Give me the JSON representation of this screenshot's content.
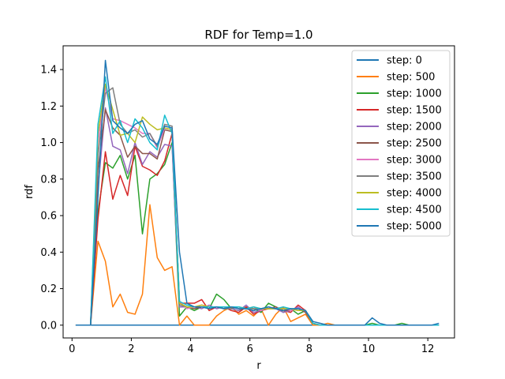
{
  "chart_data": {
    "type": "line",
    "title": "RDF for Temp=1.0",
    "xlabel": "r",
    "ylabel": "rdf",
    "xlim": [
      -0.3,
      12.9
    ],
    "ylim": [
      -0.07,
      1.53
    ],
    "xticks": [
      "0",
      "2",
      "4",
      "6",
      "8",
      "10",
      "12"
    ],
    "yticks": [
      "0.0",
      "0.2",
      "0.4",
      "0.6",
      "0.8",
      "1.0",
      "1.2",
      "1.4"
    ],
    "legend_position": "top-right",
    "grid": false,
    "x": [
      0.125,
      0.375,
      0.625,
      0.875,
      1.125,
      1.375,
      1.625,
      1.875,
      2.125,
      2.375,
      2.625,
      2.875,
      3.125,
      3.375,
      3.625,
      3.875,
      4.125,
      4.375,
      4.625,
      4.875,
      5.125,
      5.375,
      5.625,
      5.875,
      6.125,
      6.375,
      6.625,
      6.875,
      7.125,
      7.375,
      7.625,
      7.875,
      8.125,
      8.375,
      8.625,
      8.875,
      9.125,
      9.375,
      9.625,
      9.875,
      10.125,
      10.375,
      10.625,
      10.875,
      11.125,
      11.375,
      11.625,
      11.875,
      12.125,
      12.375
    ],
    "series": [
      {
        "name": "step: 0",
        "color": "#1f77b4",
        "values": [
          0,
          0,
          0,
          0,
          0,
          0,
          0,
          0,
          0,
          0,
          0,
          0,
          0,
          0,
          0,
          0,
          0,
          0,
          0,
          0,
          0,
          0,
          0,
          0,
          0,
          0,
          0,
          0,
          0,
          0,
          0,
          0,
          0,
          0,
          0,
          0,
          0,
          0,
          0,
          0,
          0,
          0,
          0,
          0,
          0,
          0,
          0,
          0,
          0,
          0
        ]
      },
      {
        "name": "step: 500",
        "color": "#ff7f0e",
        "values": [
          0,
          0,
          0,
          0.46,
          0.35,
          0.1,
          0.17,
          0.07,
          0.06,
          0.17,
          0.66,
          0.37,
          0.3,
          0.32,
          0,
          0.05,
          0,
          0,
          0,
          0.05,
          0.08,
          0.1,
          0.06,
          0.08,
          0.05,
          0.09,
          0,
          0.06,
          0.1,
          0.02,
          0.04,
          0.06,
          0,
          0,
          0.01,
          0,
          0,
          0,
          0,
          0,
          0,
          0,
          0,
          0,
          0,
          0,
          0,
          0,
          0,
          0
        ]
      },
      {
        "name": "step: 1000",
        "color": "#2ca02c",
        "values": [
          0,
          0,
          0,
          0.62,
          0.89,
          0.86,
          0.93,
          0.8,
          0.93,
          0.5,
          0.8,
          0.83,
          0.88,
          1.0,
          0.05,
          0.1,
          0.08,
          0.1,
          0.09,
          0.17,
          0.14,
          0.09,
          0.08,
          0.1,
          0.09,
          0.07,
          0.12,
          0.1,
          0.07,
          0.09,
          0.06,
          0.08,
          0.01,
          0,
          0,
          0,
          0,
          0,
          0,
          0,
          0.01,
          0,
          0,
          0,
          0.01,
          0,
          0,
          0,
          0,
          0
        ]
      },
      {
        "name": "step: 1500",
        "color": "#d62728",
        "values": [
          0,
          0,
          0,
          0.58,
          0.95,
          0.69,
          0.82,
          0.71,
          0.98,
          0.87,
          0.85,
          0.82,
          0.9,
          1.05,
          0.12,
          0.12,
          0.12,
          0.14,
          0.08,
          0.1,
          0.1,
          0.08,
          0.07,
          0.1,
          0.06,
          0.08,
          0.09,
          0.1,
          0.08,
          0.07,
          0.11,
          0.08,
          0.01,
          0,
          0,
          0,
          0,
          0,
          0,
          0,
          0,
          0,
          0,
          0,
          0,
          0,
          0,
          0,
          0,
          0
        ]
      },
      {
        "name": "step: 2000",
        "color": "#9467bd",
        "values": [
          0,
          0,
          0,
          0.75,
          1.19,
          0.98,
          0.96,
          0.83,
          1.0,
          0.88,
          0.95,
          0.92,
          0.99,
          0.98,
          0.1,
          0.1,
          0.1,
          0.09,
          0.11,
          0.09,
          0.1,
          0.09,
          0.08,
          0.11,
          0.07,
          0.08,
          0.1,
          0.09,
          0.07,
          0.08,
          0.1,
          0.07,
          0.01,
          0,
          0,
          0,
          0,
          0,
          0,
          0,
          0,
          0,
          0,
          0,
          0,
          0,
          0,
          0,
          0,
          0
        ]
      },
      {
        "name": "step: 2500",
        "color": "#8c564b",
        "values": [
          0,
          0,
          0,
          0.85,
          1.18,
          1.08,
          1.04,
          0.92,
          0.98,
          0.94,
          0.94,
          0.91,
          1.07,
          1.06,
          0.12,
          0.1,
          0.09,
          0.1,
          0.1,
          0.1,
          0.09,
          0.1,
          0.09,
          0.09,
          0.08,
          0.09,
          0.09,
          0.1,
          0.08,
          0.08,
          0.09,
          0.07,
          0.01,
          0,
          0,
          0,
          0,
          0,
          0,
          0,
          0,
          0,
          0,
          0,
          0,
          0,
          0,
          0,
          0,
          0
        ]
      },
      {
        "name": "step: 3000",
        "color": "#e377c2",
        "values": [
          0,
          0,
          0,
          1.0,
          1.3,
          1.13,
          1.12,
          1.1,
          1.08,
          1.05,
          1.05,
          0.97,
          1.08,
          1.07,
          0.13,
          0.09,
          0.1,
          0.11,
          0.1,
          0.1,
          0.09,
          0.1,
          0.1,
          0.09,
          0.1,
          0.08,
          0.1,
          0.09,
          0.09,
          0.08,
          0.09,
          0.08,
          0.01,
          0,
          0,
          0,
          0,
          0,
          0,
          0,
          0,
          0,
          0,
          0,
          0,
          0,
          0,
          0,
          0,
          0
        ]
      },
      {
        "name": "step: 3500",
        "color": "#7f7f7f",
        "values": [
          0,
          0,
          0,
          0.93,
          1.27,
          1.3,
          1.1,
          1.05,
          1.07,
          1.03,
          1.05,
          0.98,
          1.1,
          1.09,
          0.11,
          0.1,
          0.1,
          0.1,
          0.1,
          0.1,
          0.09,
          0.09,
          0.1,
          0.09,
          0.09,
          0.09,
          0.09,
          0.09,
          0.09,
          0.09,
          0.08,
          0.08,
          0.01,
          0,
          0,
          0,
          0,
          0,
          0,
          0,
          0,
          0,
          0,
          0,
          0,
          0,
          0,
          0,
          0,
          0
        ]
      },
      {
        "name": "step: 4000",
        "color": "#bcbd22",
        "values": [
          0,
          0,
          0,
          1.05,
          1.32,
          1.18,
          1.04,
          1.05,
          1.0,
          1.14,
          1.1,
          1.07,
          1.08,
          1.07,
          0.12,
          0.1,
          0.1,
          0.11,
          0.1,
          0.1,
          0.09,
          0.1,
          0.1,
          0.09,
          0.1,
          0.09,
          0.09,
          0.09,
          0.09,
          0.09,
          0.08,
          0.08,
          0.01,
          0,
          0,
          0,
          0,
          0,
          0,
          0,
          0,
          0,
          0,
          0,
          0,
          0,
          0,
          0,
          0,
          0
        ]
      },
      {
        "name": "step: 4500",
        "color": "#17becf",
        "values": [
          0,
          0,
          0,
          1.1,
          1.36,
          1.05,
          1.12,
          1.0,
          1.13,
          1.08,
          1.0,
          0.96,
          1.15,
          1.05,
          0.13,
          0.11,
          0.1,
          0.1,
          0.1,
          0.1,
          0.1,
          0.1,
          0.1,
          0.09,
          0.1,
          0.09,
          0.1,
          0.09,
          0.1,
          0.09,
          0.09,
          0.08,
          0.01,
          0,
          0,
          0,
          0,
          0,
          0,
          0,
          0,
          0,
          0,
          0,
          0,
          0,
          0,
          0,
          0,
          0
        ]
      },
      {
        "name": "step: 5000",
        "color": "#1f77b4",
        "values": [
          0,
          0,
          0,
          0.7,
          1.45,
          1.12,
          1.08,
          1.05,
          1.1,
          1.12,
          1.02,
          0.99,
          1.09,
          1.08,
          0.4,
          0.12,
          0.1,
          0.1,
          0.09,
          0.1,
          0.09,
          0.1,
          0.09,
          0.09,
          0.08,
          0.09,
          0.1,
          0.09,
          0.08,
          0.09,
          0.09,
          0.08,
          0.02,
          0.01,
          0,
          0,
          0,
          0,
          0,
          0,
          0.04,
          0.01,
          0,
          0,
          0,
          0,
          0,
          0,
          0,
          0.01
        ]
      }
    ]
  }
}
